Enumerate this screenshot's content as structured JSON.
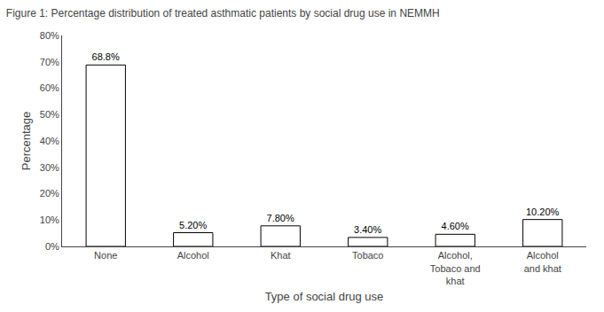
{
  "chart_data": {
    "type": "bar",
    "title": "Figure 1: Percentage distribution of treated asthmatic patients by social drug use in NEMMH",
    "categories": [
      "None",
      "Alcohol",
      "Khat",
      "Tobaco",
      "Alcohol,\nTobaco and\nkhat",
      "Alcohol\nand khat"
    ],
    "values": [
      68.8,
      5.2,
      7.8,
      3.4,
      4.6,
      10.2
    ],
    "value_labels": [
      "68.8%",
      "5.20%",
      "7.80%",
      "3.40%",
      "4.60%",
      "10.20%"
    ],
    "data_labels": true,
    "color": "#ffffff",
    "xlabel": "Type of social drug use",
    "ylabel": "Percentage",
    "ylim": [
      0,
      80
    ],
    "yticks": [
      {
        "value": 0,
        "label": "0%"
      },
      {
        "value": 10,
        "label": "10%"
      },
      {
        "value": 20,
        "label": "20%"
      },
      {
        "value": 30,
        "label": "30%"
      },
      {
        "value": 40,
        "label": "40%"
      },
      {
        "value": 50,
        "label": "50%"
      },
      {
        "value": 60,
        "label": "60%"
      },
      {
        "value": 70,
        "label": "70%"
      },
      {
        "value": 80,
        "label": "80%"
      }
    ],
    "grid": false
  }
}
